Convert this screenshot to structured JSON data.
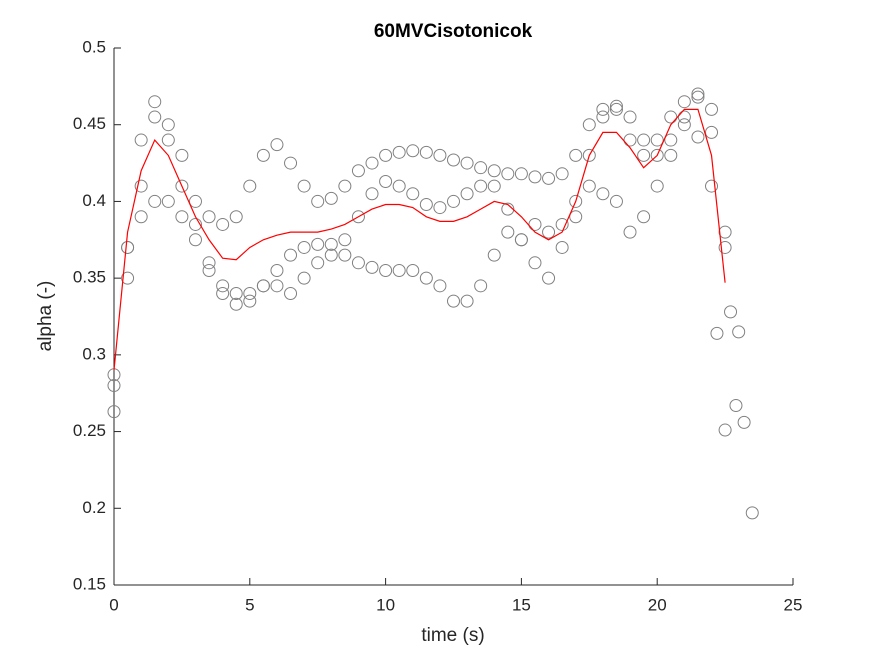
{
  "chart_data": {
    "type": "scatter",
    "title": "60MVCisotonicok",
    "xlabel": "time (s)",
    "ylabel": "alpha (-)",
    "xlim": [
      0,
      25
    ],
    "ylim": [
      0.15,
      0.5
    ],
    "xticks": [
      0,
      5,
      10,
      15,
      20,
      25
    ],
    "yticks": [
      0.15,
      0.2,
      0.25,
      0.3,
      0.35,
      0.4,
      0.45,
      0.5
    ],
    "series": [
      {
        "color": "#808080",
        "x": [
          0,
          0.5,
          1,
          1.5,
          2,
          2.5,
          3,
          3.5,
          4,
          4.5,
          5,
          5.5,
          6,
          6.5,
          7,
          7.5,
          8,
          8.5,
          9,
          9.5,
          10,
          10.5,
          11,
          11.5,
          12,
          12.5,
          13,
          13.5,
          14,
          14.5,
          15,
          15.5,
          16,
          16.5,
          17,
          17.5,
          18,
          18.5,
          19,
          19.5,
          20,
          20.5,
          21,
          21.5,
          22,
          22.5,
          22.9
        ],
        "values": [
          0.28,
          0.37,
          0.44,
          0.465,
          0.45,
          0.43,
          0.4,
          0.39,
          0.385,
          0.39,
          0.41,
          0.43,
          0.437,
          0.425,
          0.41,
          0.4,
          0.402,
          0.41,
          0.42,
          0.425,
          0.43,
          0.432,
          0.433,
          0.432,
          0.43,
          0.427,
          0.425,
          0.422,
          0.42,
          0.418,
          0.418,
          0.416,
          0.415,
          0.418,
          0.43,
          0.45,
          0.46,
          0.462,
          0.455,
          0.44,
          0.43,
          0.44,
          0.455,
          0.47,
          0.46,
          0.37,
          0.267
        ]
      },
      {
        "color": "#808080",
        "x": [
          0,
          0.5,
          1,
          1.5,
          2,
          2.5,
          3,
          3.5,
          4,
          4.5,
          5,
          5.5,
          6,
          6.5,
          7,
          7.5,
          8,
          8.5,
          9,
          9.5,
          10,
          10.5,
          11,
          11.5,
          12,
          12.5,
          13,
          13.5,
          14,
          14.5,
          15,
          15.5,
          16,
          16.5,
          17,
          17.5,
          18,
          18.5,
          19,
          19.5,
          20,
          20.5,
          21,
          21.5,
          22,
          22.5,
          22.7,
          23
        ],
        "values": [
          0.263,
          0.35,
          0.41,
          0.455,
          0.44,
          0.41,
          0.385,
          0.36,
          0.34,
          0.333,
          0.335,
          0.345,
          0.355,
          0.365,
          0.37,
          0.372,
          0.372,
          0.375,
          0.39,
          0.405,
          0.413,
          0.41,
          0.405,
          0.398,
          0.396,
          0.4,
          0.405,
          0.41,
          0.41,
          0.395,
          0.375,
          0.36,
          0.35,
          0.37,
          0.39,
          0.43,
          0.455,
          0.46,
          0.44,
          0.43,
          0.44,
          0.455,
          0.465,
          0.468,
          0.445,
          0.38,
          0.328,
          0.315
        ]
      },
      {
        "color": "#808080",
        "x": [
          0,
          0.5,
          1,
          1.5,
          2,
          2.5,
          3,
          3.5,
          4,
          4.5,
          5,
          5.5,
          6,
          6.5,
          7,
          7.5,
          8,
          8.5,
          9,
          9.5,
          10,
          10.5,
          11,
          11.5,
          12,
          12.5,
          13,
          13.5,
          14,
          14.5,
          15,
          15.5,
          16,
          16.5,
          17,
          17.5,
          18,
          18.5,
          19,
          19.5,
          20,
          20.5,
          21,
          21.5,
          22,
          22.2,
          22.5,
          23.2,
          23.5
        ],
        "values": [
          0.287,
          0.37,
          0.39,
          0.4,
          0.4,
          0.39,
          0.375,
          0.355,
          0.345,
          0.34,
          0.34,
          0.345,
          0.345,
          0.34,
          0.35,
          0.36,
          0.365,
          0.365,
          0.36,
          0.357,
          0.355,
          0.355,
          0.355,
          0.35,
          0.345,
          0.335,
          0.335,
          0.345,
          0.365,
          0.38,
          0.375,
          0.385,
          0.38,
          0.385,
          0.4,
          0.41,
          0.405,
          0.4,
          0.38,
          0.39,
          0.41,
          0.43,
          0.45,
          0.442,
          0.41,
          0.314,
          0.251,
          0.256,
          0.197
        ]
      },
      {
        "type": "line",
        "color": "#ff0000",
        "x": [
          0,
          0.5,
          1,
          1.5,
          2,
          2.5,
          3,
          3.5,
          4,
          4.5,
          5,
          5.5,
          6,
          6.5,
          7,
          7.5,
          8,
          8.5,
          9,
          9.5,
          10,
          10.5,
          11,
          11.5,
          12,
          12.5,
          13,
          13.5,
          14,
          14.5,
          15,
          15.5,
          16,
          16.5,
          17,
          17.5,
          18,
          18.5,
          19,
          19.5,
          20,
          20.5,
          21,
          21.5,
          22,
          22.5
        ],
        "values": [
          0.29,
          0.38,
          0.42,
          0.44,
          0.43,
          0.41,
          0.39,
          0.375,
          0.363,
          0.362,
          0.37,
          0.375,
          0.378,
          0.38,
          0.38,
          0.38,
          0.382,
          0.385,
          0.39,
          0.395,
          0.398,
          0.398,
          0.396,
          0.39,
          0.387,
          0.387,
          0.39,
          0.395,
          0.4,
          0.398,
          0.39,
          0.38,
          0.375,
          0.38,
          0.4,
          0.43,
          0.445,
          0.445,
          0.435,
          0.422,
          0.43,
          0.45,
          0.46,
          0.46,
          0.43,
          0.347
        ]
      }
    ]
  }
}
